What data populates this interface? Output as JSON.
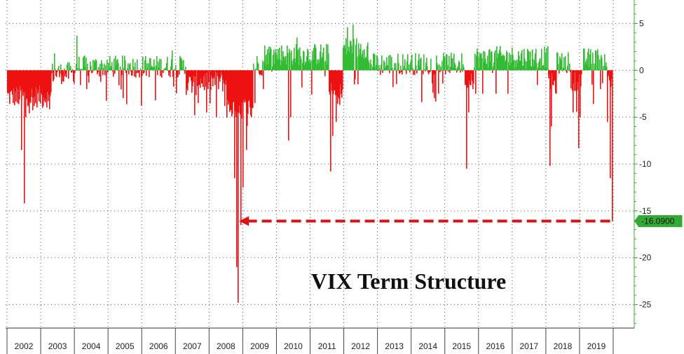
{
  "chart_data": {
    "type": "bar",
    "title": "VIX Term Structure",
    "xlabel": "",
    "ylabel": "",
    "x_range": [
      2001.9,
      2020.1
    ],
    "ylim": [
      -27.5,
      7.5
    ],
    "y_ticks": [
      5,
      0,
      -5,
      -10,
      -15,
      -20,
      -25
    ],
    "y_tick_labels": [
      "5",
      "0",
      "-5",
      "-10",
      "-15",
      "-20",
      "-25"
    ],
    "x_tick_labels": [
      "2002",
      "2003",
      "2004",
      "2005",
      "2006",
      "2007",
      "2008",
      "2009",
      "2010",
      "2011",
      "2012",
      "2013",
      "2014",
      "2015",
      "2016",
      "2017",
      "2018",
      "2019"
    ],
    "grid": true,
    "positive_color": "#33bb33",
    "negative_color": "#ee1111",
    "axis_color": "#33aa33",
    "last_value": -16.09,
    "last_value_label": "-16.0900",
    "last_value_label_color": "#33aa33",
    "arrow": {
      "from_year": 2019.95,
      "to_year": 2008.85,
      "value": -16.09,
      "color": "#dd1111",
      "style": "dashed"
    },
    "spikes": [
      {
        "x": 2002.5,
        "y": -14.2
      },
      {
        "x": 2002.42,
        "y": -8.5
      },
      {
        "x": 2002.55,
        "y": -5.0
      },
      {
        "x": 2002.65,
        "y": -4.6
      },
      {
        "x": 2002.3,
        "y": -3.5
      },
      {
        "x": 2002.8,
        "y": -3.8
      },
      {
        "x": 2003.05,
        "y": -4.0
      },
      {
        "x": 2003.2,
        "y": -3.3
      },
      {
        "x": 2003.4,
        "y": 1.8
      },
      {
        "x": 2004.05,
        "y": 3.7
      },
      {
        "x": 2004.35,
        "y": -2.0
      },
      {
        "x": 2005.3,
        "y": -1.6
      },
      {
        "x": 2006.4,
        "y": -3.2
      },
      {
        "x": 2006.9,
        "y": 2.1
      },
      {
        "x": 2007.55,
        "y": -4.8
      },
      {
        "x": 2007.65,
        "y": -3.5
      },
      {
        "x": 2007.9,
        "y": -4.5
      },
      {
        "x": 2008.2,
        "y": -5.0
      },
      {
        "x": 2008.45,
        "y": -3.8
      },
      {
        "x": 2008.75,
        "y": -11.5
      },
      {
        "x": 2008.8,
        "y": -21.0
      },
      {
        "x": 2008.85,
        "y": -24.8
      },
      {
        "x": 2008.92,
        "y": -16.5
      },
      {
        "x": 2009.0,
        "y": -12.5
      },
      {
        "x": 2009.1,
        "y": -8.5
      },
      {
        "x": 2009.25,
        "y": -5.0
      },
      {
        "x": 2009.35,
        "y": -3.5
      },
      {
        "x": 2009.6,
        "y": -2.0
      },
      {
        "x": 2009.8,
        "y": 2.5
      },
      {
        "x": 2010.35,
        "y": -7.5
      },
      {
        "x": 2010.4,
        "y": -5.0
      },
      {
        "x": 2010.6,
        "y": 3.5
      },
      {
        "x": 2011.6,
        "y": -10.8
      },
      {
        "x": 2011.65,
        "y": -7.0
      },
      {
        "x": 2011.75,
        "y": -5.5
      },
      {
        "x": 2011.85,
        "y": -3.0
      },
      {
        "x": 2012.1,
        "y": 4.6
      },
      {
        "x": 2012.25,
        "y": 4.9
      },
      {
        "x": 2012.4,
        "y": -1.5
      },
      {
        "x": 2013.45,
        "y": -1.8
      },
      {
        "x": 2014.3,
        "y": -3.4
      },
      {
        "x": 2014.8,
        "y": -2.5
      },
      {
        "x": 2015.62,
        "y": -10.5
      },
      {
        "x": 2015.7,
        "y": -4.5
      },
      {
        "x": 2015.9,
        "y": -2.5
      },
      {
        "x": 2016.1,
        "y": -2.5
      },
      {
        "x": 2016.5,
        "y": -2.5
      },
      {
        "x": 2016.85,
        "y": -2.5
      },
      {
        "x": 2018.1,
        "y": -10.2
      },
      {
        "x": 2018.15,
        "y": -6.0
      },
      {
        "x": 2018.3,
        "y": -2.5
      },
      {
        "x": 2018.8,
        "y": -4.5
      },
      {
        "x": 2018.95,
        "y": -8.3
      },
      {
        "x": 2019.0,
        "y": -5.0
      },
      {
        "x": 2019.4,
        "y": -3.6
      },
      {
        "x": 2019.6,
        "y": -2.0
      },
      {
        "x": 2019.82,
        "y": -5.5
      },
      {
        "x": 2019.9,
        "y": -11.5
      },
      {
        "x": 2019.95,
        "y": -16.09
      }
    ]
  }
}
